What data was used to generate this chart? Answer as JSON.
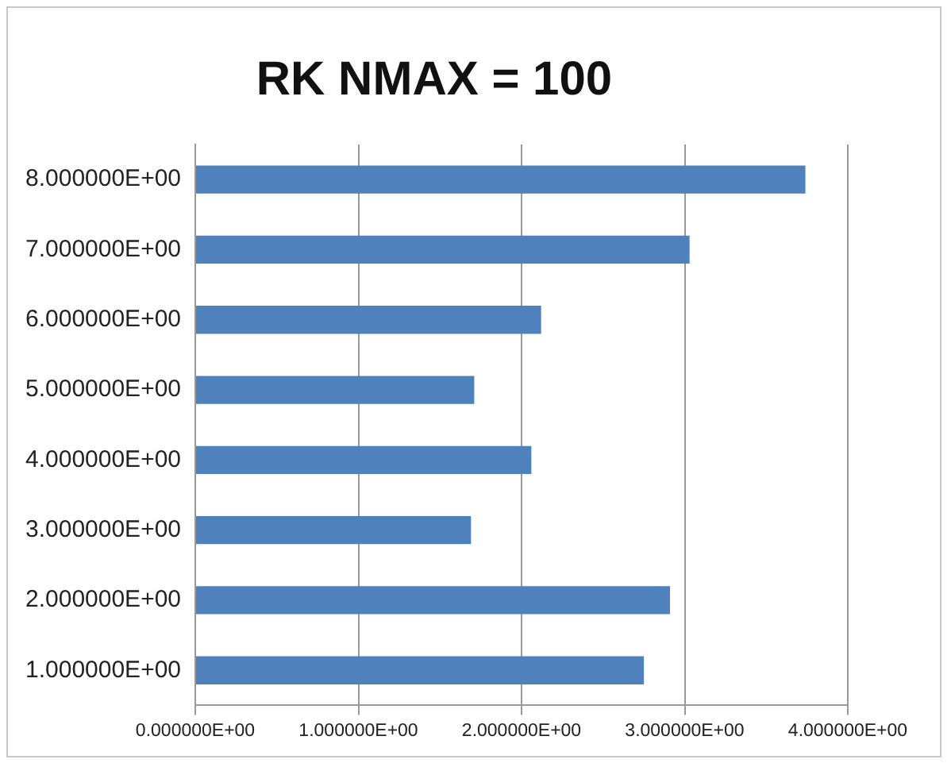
{
  "chart_data": {
    "type": "bar",
    "orientation": "horizontal",
    "title": "RK NMAX = 100",
    "categories": [
      "8.000000E+00",
      "7.000000E+00",
      "6.000000E+00",
      "5.000000E+00",
      "4.000000E+00",
      "3.000000E+00",
      "2.000000E+00",
      "1.000000E+00"
    ],
    "values": [
      3.74,
      3.03,
      2.12,
      1.71,
      2.06,
      1.69,
      2.91,
      2.75
    ],
    "color": "#4f81bd",
    "xlim": [
      0,
      4
    ],
    "xticks": [
      {
        "value": 0,
        "label": "0.000000E+00"
      },
      {
        "value": 1,
        "label": "1.000000E+00"
      },
      {
        "value": 2,
        "label": "2.000000E+00"
      },
      {
        "value": 3,
        "label": "3.000000E+00"
      },
      {
        "value": 4,
        "label": "4.000000E+00"
      }
    ],
    "grid": "x",
    "legend": false
  }
}
